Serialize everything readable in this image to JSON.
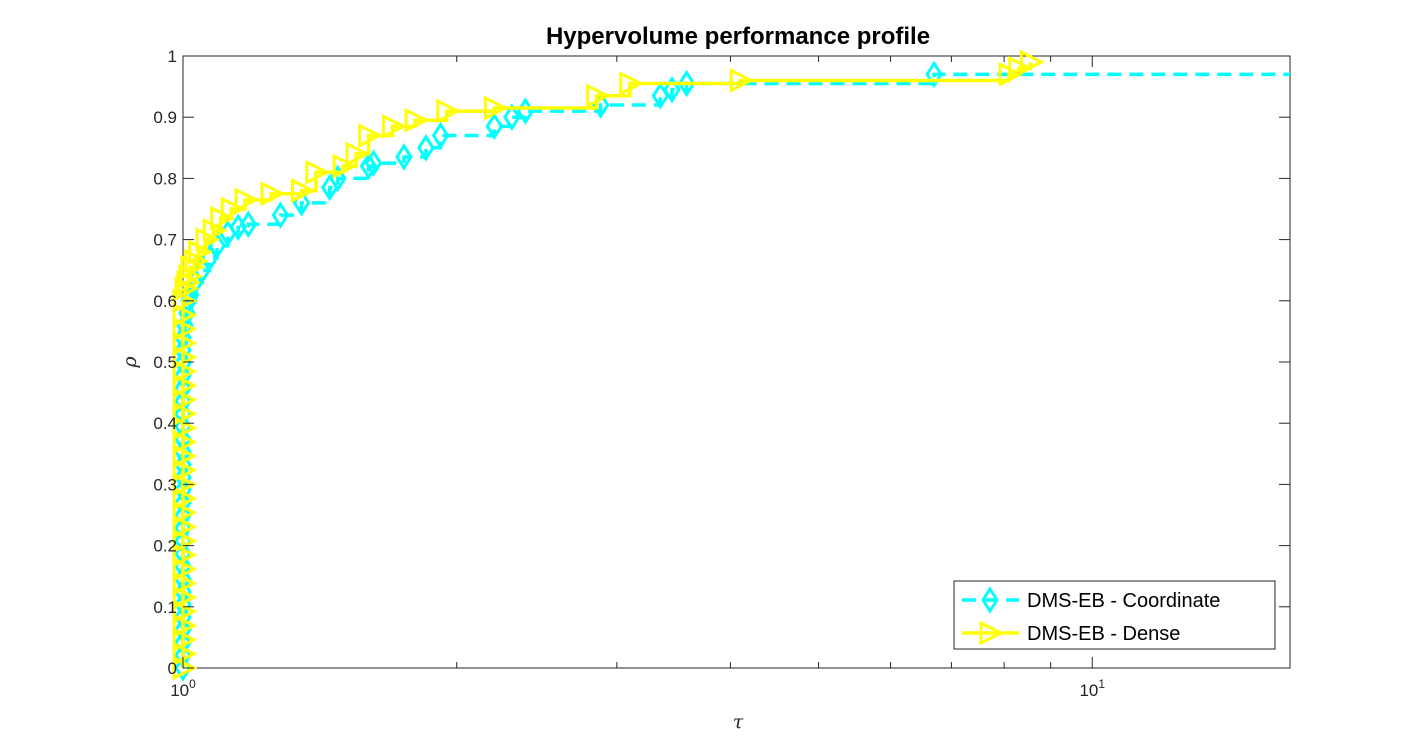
{
  "chart_data": {
    "type": "line",
    "title": "Hypervolume performance profile",
    "xlabel": "τ",
    "ylabel": "ρ",
    "xscale": "log",
    "xlim": [
      1,
      16.5
    ],
    "ylim": [
      0,
      1
    ],
    "xticks": [
      {
        "value": 1,
        "base": "10",
        "exp": "0"
      },
      {
        "value": 10,
        "base": "10",
        "exp": "1"
      }
    ],
    "yticks": [
      "0",
      "0.1",
      "0.2",
      "0.3",
      "0.4",
      "0.5",
      "0.6",
      "0.7",
      "0.8",
      "0.9",
      "1"
    ],
    "grid": false,
    "legend_position": "bottom-right",
    "series": [
      {
        "name": "DMS-EB - Coordinate",
        "color": "#00FFFF",
        "line": "dashed",
        "marker": "diamond",
        "x": [
          1,
          1,
          1.005,
          1.01,
          1.015,
          1.02,
          1.03,
          1.05,
          1.07,
          1.09,
          1.12,
          1.15,
          1.18,
          1.28,
          1.35,
          1.45,
          1.48,
          1.6,
          1.62,
          1.75,
          1.85,
          1.92,
          2.2,
          2.3,
          2.38,
          2.88,
          3.35,
          3.45,
          3.58,
          6.7,
          16.5
        ],
        "y": [
          0,
          0.54,
          0.56,
          0.58,
          0.6,
          0.61,
          0.63,
          0.65,
          0.67,
          0.69,
          0.71,
          0.72,
          0.725,
          0.74,
          0.76,
          0.785,
          0.8,
          0.82,
          0.825,
          0.835,
          0.85,
          0.87,
          0.885,
          0.9,
          0.91,
          0.92,
          0.935,
          0.945,
          0.955,
          0.97,
          0.97
        ]
      },
      {
        "name": "DMS-EB - Dense",
        "color": "#FFFF00",
        "line": "solid",
        "marker": "triangle-right",
        "x": [
          1,
          1,
          1.005,
          1.01,
          1.015,
          1.02,
          1.03,
          1.04,
          1.06,
          1.08,
          1.1,
          1.13,
          1.17,
          1.25,
          1.35,
          1.4,
          1.5,
          1.55,
          1.6,
          1.7,
          1.8,
          1.95,
          2.2,
          2.85,
          3.1,
          4.1,
          8.1,
          8.3,
          8.55
        ],
        "y": [
          0,
          0.6,
          0.62,
          0.63,
          0.64,
          0.655,
          0.665,
          0.68,
          0.7,
          0.715,
          0.735,
          0.75,
          0.765,
          0.775,
          0.78,
          0.81,
          0.82,
          0.84,
          0.87,
          0.885,
          0.895,
          0.91,
          0.915,
          0.935,
          0.955,
          0.96,
          0.97,
          0.98,
          0.99
        ]
      }
    ]
  }
}
